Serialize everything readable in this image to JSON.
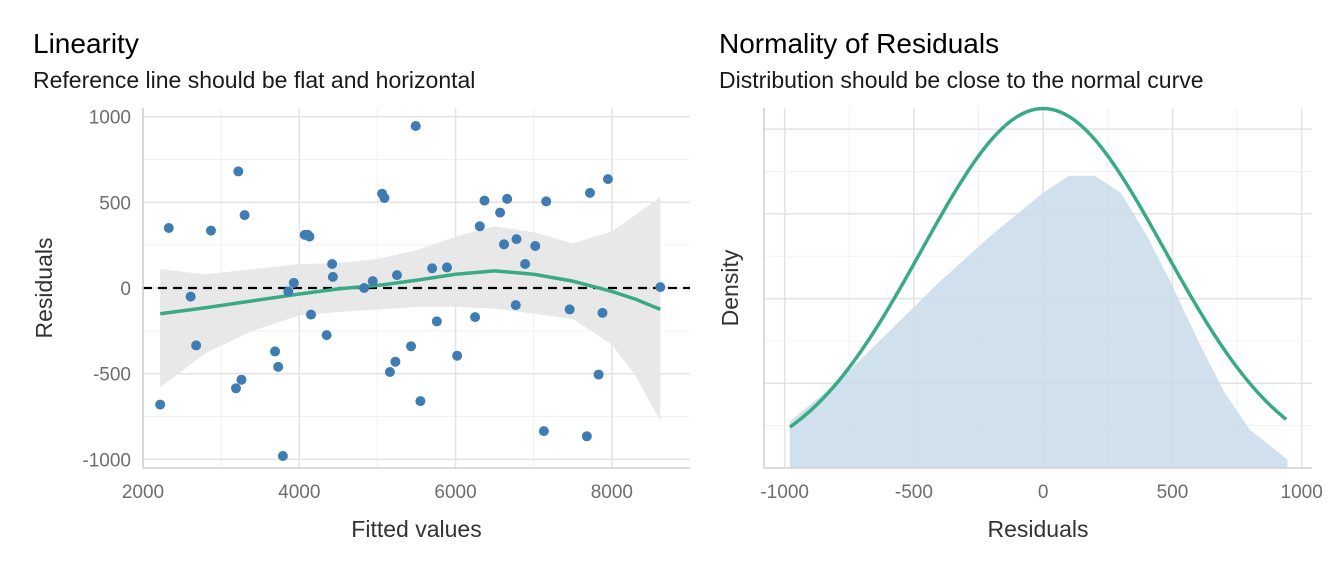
{
  "chart_data": [
    {
      "type": "scatter",
      "title": "Linearity",
      "subtitle": "Reference line should be flat and horizontal",
      "xlabel": "Fitted values",
      "ylabel": "Residuals",
      "xlim": [
        2000,
        9000
      ],
      "ylim": [
        -1050,
        1050
      ],
      "xticks": [
        2000,
        4000,
        6000,
        8000
      ],
      "yticks": [
        -1000,
        -500,
        0,
        500,
        1000
      ],
      "grid": true,
      "reference_line_y": 0,
      "colors": {
        "points": "#3E7CB1",
        "smooth": "#3AAA85",
        "band": "#E6E6E6",
        "reference": "#000000"
      },
      "points": [
        {
          "x": 2220,
          "y": -680
        },
        {
          "x": 2330,
          "y": 350
        },
        {
          "x": 2610,
          "y": -50
        },
        {
          "x": 2680,
          "y": -335
        },
        {
          "x": 2870,
          "y": 335
        },
        {
          "x": 3190,
          "y": -585
        },
        {
          "x": 3220,
          "y": 680
        },
        {
          "x": 3260,
          "y": -535
        },
        {
          "x": 3300,
          "y": 425
        },
        {
          "x": 3690,
          "y": -370
        },
        {
          "x": 3730,
          "y": -460
        },
        {
          "x": 3790,
          "y": -980
        },
        {
          "x": 3860,
          "y": -20
        },
        {
          "x": 3930,
          "y": 30
        },
        {
          "x": 4070,
          "y": 310
        },
        {
          "x": 4110,
          "y": 310
        },
        {
          "x": 4130,
          "y": 300
        },
        {
          "x": 4150,
          "y": -155
        },
        {
          "x": 4350,
          "y": -275
        },
        {
          "x": 4420,
          "y": 140
        },
        {
          "x": 4430,
          "y": 65
        },
        {
          "x": 4830,
          "y": 0
        },
        {
          "x": 4940,
          "y": 40
        },
        {
          "x": 5060,
          "y": 550
        },
        {
          "x": 5090,
          "y": 525
        },
        {
          "x": 5160,
          "y": -490
        },
        {
          "x": 5230,
          "y": -430
        },
        {
          "x": 5250,
          "y": 75
        },
        {
          "x": 5430,
          "y": -340
        },
        {
          "x": 5490,
          "y": 945
        },
        {
          "x": 5550,
          "y": -660
        },
        {
          "x": 5700,
          "y": 115
        },
        {
          "x": 5760,
          "y": -195
        },
        {
          "x": 5890,
          "y": 120
        },
        {
          "x": 6020,
          "y": -395
        },
        {
          "x": 6250,
          "y": -170
        },
        {
          "x": 6310,
          "y": 360
        },
        {
          "x": 6370,
          "y": 510
        },
        {
          "x": 6570,
          "y": 440
        },
        {
          "x": 6620,
          "y": 255
        },
        {
          "x": 6660,
          "y": 520
        },
        {
          "x": 6770,
          "y": -100
        },
        {
          "x": 6780,
          "y": 285
        },
        {
          "x": 6890,
          "y": 140
        },
        {
          "x": 7020,
          "y": 245
        },
        {
          "x": 7130,
          "y": -835
        },
        {
          "x": 7160,
          "y": 505
        },
        {
          "x": 7460,
          "y": -125
        },
        {
          "x": 7680,
          "y": -865
        },
        {
          "x": 7720,
          "y": 555
        },
        {
          "x": 7830,
          "y": -505
        },
        {
          "x": 7880,
          "y": -145
        },
        {
          "x": 7950,
          "y": 635
        },
        {
          "x": 8620,
          "y": 5
        }
      ],
      "smooth_line": [
        {
          "x": 2220,
          "y": -150
        },
        {
          "x": 2800,
          "y": -115
        },
        {
          "x": 3400,
          "y": -75
        },
        {
          "x": 4000,
          "y": -35
        },
        {
          "x": 4500,
          "y": -5
        },
        {
          "x": 5000,
          "y": 15
        },
        {
          "x": 5500,
          "y": 45
        },
        {
          "x": 6000,
          "y": 80
        },
        {
          "x": 6500,
          "y": 100
        },
        {
          "x": 7000,
          "y": 80
        },
        {
          "x": 7500,
          "y": 40
        },
        {
          "x": 8000,
          "y": -20
        },
        {
          "x": 8300,
          "y": -65
        },
        {
          "x": 8620,
          "y": -125
        }
      ],
      "confidence_band": [
        {
          "x": 2220,
          "upper": 110,
          "lower": -580
        },
        {
          "x": 2800,
          "upper": 80,
          "lower": -380
        },
        {
          "x": 3400,
          "upper": 110,
          "lower": -250
        },
        {
          "x": 4000,
          "upper": 140,
          "lower": -160
        },
        {
          "x": 4500,
          "upper": 145,
          "lower": -140
        },
        {
          "x": 5000,
          "upper": 170,
          "lower": -125
        },
        {
          "x": 5500,
          "upper": 220,
          "lower": -110
        },
        {
          "x": 6000,
          "upper": 300,
          "lower": -110
        },
        {
          "x": 6500,
          "upper": 360,
          "lower": -120
        },
        {
          "x": 7000,
          "upper": 325,
          "lower": -150
        },
        {
          "x": 7500,
          "upper": 260,
          "lower": -180
        },
        {
          "x": 8000,
          "upper": 330,
          "lower": -330
        },
        {
          "x": 8300,
          "upper": 425,
          "lower": -510
        },
        {
          "x": 8620,
          "upper": 530,
          "lower": -775
        }
      ]
    },
    {
      "type": "area",
      "title": "Normality of Residuals",
      "subtitle": "Distribution should be close to the normal curve",
      "xlabel": "Residuals",
      "ylabel": "Density",
      "xlim": [
        -1080,
        1040
      ],
      "ylim": [
        0,
        0.00085
      ],
      "xticks": [
        -1000,
        -500,
        0,
        500,
        1000
      ],
      "grid": true,
      "colors": {
        "density_fill": "#C9DAEA",
        "normal_curve": "#3AAA85"
      },
      "density": [
        {
          "x": -980,
          "y": 0.00011
        },
        {
          "x": -800,
          "y": 0.0002
        },
        {
          "x": -600,
          "y": 0.00032
        },
        {
          "x": -400,
          "y": 0.00044
        },
        {
          "x": -200,
          "y": 0.00055
        },
        {
          "x": 0,
          "y": 0.00065
        },
        {
          "x": 100,
          "y": 0.00069
        },
        {
          "x": 200,
          "y": 0.00069
        },
        {
          "x": 300,
          "y": 0.00065
        },
        {
          "x": 400,
          "y": 0.00055
        },
        {
          "x": 500,
          "y": 0.00043
        },
        {
          "x": 600,
          "y": 0.0003
        },
        {
          "x": 700,
          "y": 0.00018
        },
        {
          "x": 800,
          "y": 9e-05
        },
        {
          "x": 945,
          "y": 2e-05
        }
      ],
      "normal_curve": {
        "mean": 0,
        "sd": 470,
        "x_range": [
          -980,
          945
        ]
      }
    }
  ]
}
